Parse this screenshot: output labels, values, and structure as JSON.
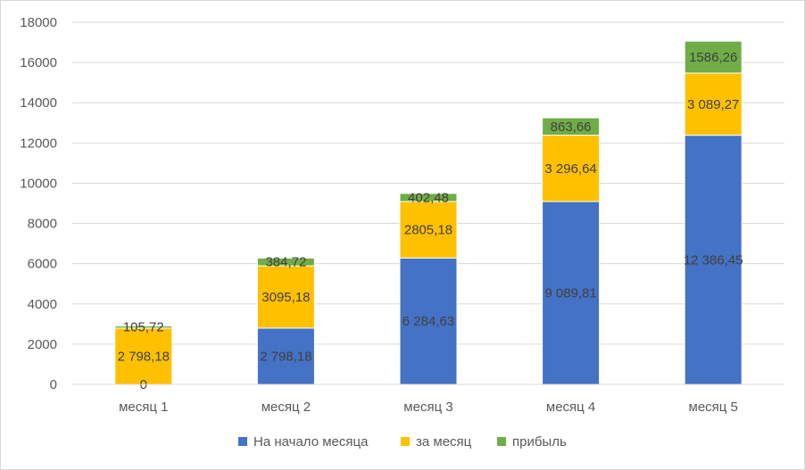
{
  "chart_data": {
    "type": "bar",
    "stacked": true,
    "categories": [
      "месяц 1",
      "месяц 2",
      "месяц 3",
      "месяц 4",
      "месяц 5"
    ],
    "series": [
      {
        "name": "На начало месяца",
        "color": "#4472c4",
        "values": [
          0,
          2798.18,
          6284.63,
          9089.81,
          12386.45
        ],
        "labels": [
          "0",
          "2 798,18",
          "6 284,63",
          "9 089,81",
          "12 386,45"
        ]
      },
      {
        "name": "за месяц",
        "color": "#ffc000",
        "values": [
          2798.18,
          3095.18,
          2805.18,
          3296.64,
          3089.27
        ],
        "labels": [
          "2 798,18",
          "3095,18",
          "2805,18",
          "3 296,64",
          "3 089,27"
        ]
      },
      {
        "name": "прибыль",
        "color": "#70ad47",
        "values": [
          105.72,
          384.72,
          402.48,
          863.66,
          1586.26
        ],
        "labels": [
          "105,72",
          "384,72",
          "402,48",
          "863,66",
          "1586,26"
        ]
      }
    ],
    "ylim": [
      0,
      18000
    ],
    "yticks": [
      0,
      2000,
      4000,
      6000,
      8000,
      10000,
      12000,
      14000,
      16000,
      18000
    ],
    "grid": true,
    "legend_position": "bottom"
  }
}
